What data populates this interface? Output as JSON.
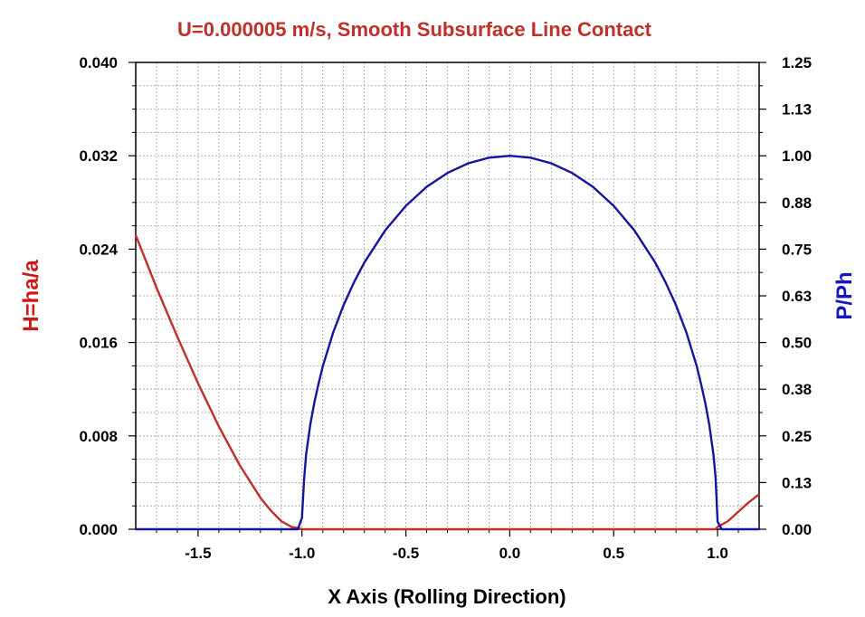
{
  "chart_data": {
    "type": "line",
    "title": "U=0.000005 m/s, Smooth Subsurface Line Contact",
    "xlabel": "X Axis (Rolling Direction)",
    "ylabel_left": "H=ha/a",
    "ylabel_right": "P/Ph",
    "xlim": [
      -1.8,
      1.2
    ],
    "ylim_left": [
      0,
      0.04
    ],
    "ylim_right": [
      0,
      1.25
    ],
    "x_ticks": [
      "-1.5",
      "-1.0",
      "-0.5",
      "0.0",
      "0.5",
      "1.0"
    ],
    "y_ticks_left": [
      "0.000",
      "0.008",
      "0.016",
      "0.024",
      "0.032",
      "0.040"
    ],
    "y_ticks_right": [
      "0.00",
      "0.13",
      "0.25",
      "0.38",
      "0.50",
      "0.63",
      "0.75",
      "0.88",
      "1.00",
      "1.13",
      "1.25"
    ],
    "grid": true,
    "colors": {
      "title": "#c0302a",
      "h_series": "#c0302a",
      "p_series": "#1515a0",
      "ylabel_left": "#cc1a1a",
      "ylabel_right": "#1515c0",
      "grid": "#a0a0a0"
    },
    "series": [
      {
        "name": "H=ha/a",
        "axis": "left",
        "x": [
          -1.8,
          -1.7,
          -1.6,
          -1.5,
          -1.4,
          -1.3,
          -1.2,
          -1.15,
          -1.1,
          -1.05,
          -1.02,
          -1.0,
          -0.9,
          -0.5,
          0.0,
          0.5,
          0.99,
          1.0,
          1.05,
          1.1,
          1.15,
          1.2
        ],
        "y": [
          0.0252,
          0.0207,
          0.0165,
          0.0125,
          0.0088,
          0.0055,
          0.0027,
          0.0016,
          0.0007,
          0.0002,
          0.0001,
          0.0,
          0.0,
          0.0,
          0.0,
          0.0,
          0.0,
          0.0002,
          0.0007,
          0.0015,
          0.0023,
          0.003
        ]
      },
      {
        "name": "P/Ph",
        "axis": "right",
        "x": [
          -1.8,
          -1.2,
          -1.02,
          -1.0,
          -0.99,
          -0.98,
          -0.96,
          -0.94,
          -0.92,
          -0.9,
          -0.85,
          -0.8,
          -0.75,
          -0.7,
          -0.6,
          -0.5,
          -0.4,
          -0.3,
          -0.2,
          -0.1,
          0.0,
          0.1,
          0.2,
          0.3,
          0.4,
          0.5,
          0.6,
          0.7,
          0.75,
          0.8,
          0.85,
          0.9,
          0.92,
          0.94,
          0.96,
          0.98,
          0.99,
          1.0,
          1.02,
          1.2
        ],
        "y": [
          0.0,
          0.0,
          0.0,
          0.03,
          0.13,
          0.2,
          0.28,
          0.34,
          0.39,
          0.436,
          0.527,
          0.6,
          0.661,
          0.714,
          0.8,
          0.866,
          0.917,
          0.954,
          0.98,
          0.995,
          1.0,
          0.995,
          0.98,
          0.954,
          0.917,
          0.866,
          0.8,
          0.714,
          0.661,
          0.6,
          0.527,
          0.436,
          0.39,
          0.34,
          0.28,
          0.2,
          0.14,
          0.02,
          0.0,
          0.0
        ]
      }
    ]
  }
}
